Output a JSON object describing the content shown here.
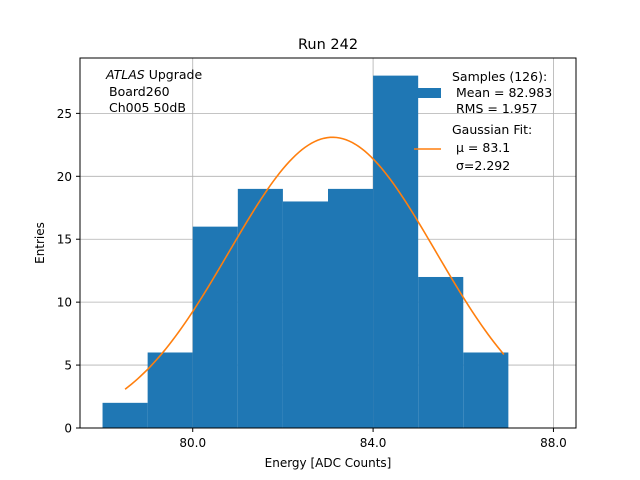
{
  "chart_data": {
    "type": "bar",
    "title": "Run 242",
    "xlabel": "Energy [ADC Counts]",
    "ylabel": "Entries",
    "xlim": [
      77.5,
      88.5
    ],
    "ylim": [
      0,
      29.4
    ],
    "grid": true,
    "x_ticks": [
      80,
      84,
      88
    ],
    "x_tick_labels": [
      "80.0",
      "84.0",
      "88.0"
    ],
    "y_ticks": [
      0,
      5,
      10,
      15,
      20,
      25
    ],
    "y_tick_labels": [
      "0",
      "5",
      "10",
      "15",
      "20",
      "25"
    ],
    "bin_edges": [
      78,
      79,
      80,
      81,
      82,
      83,
      84,
      85,
      86,
      87
    ],
    "counts": [
      2,
      6,
      16,
      19,
      18,
      19,
      28,
      12,
      6
    ],
    "fit": {
      "mu": 83.1,
      "sigma": 2.292,
      "amplitude": 23.1,
      "x_range": [
        78.5,
        86.9
      ]
    },
    "annotation_lines": [
      "ATLAS",
      " Upgrade",
      "Board260",
      "Ch005 50dB"
    ],
    "legend": {
      "samples_title": "Samples (126):",
      "samples_mean": "Mean = 82.983",
      "samples_rms": "RMS = 1.957",
      "fit_title": "Gaussian Fit:",
      "fit_mu": "μ = 83.1",
      "fit_sigma": "σ=2.292",
      "placement": "top-right"
    },
    "colors": {
      "hist": "#1f77b4",
      "fit": "#ff7f0e",
      "grid": "#b0b0b0"
    }
  }
}
